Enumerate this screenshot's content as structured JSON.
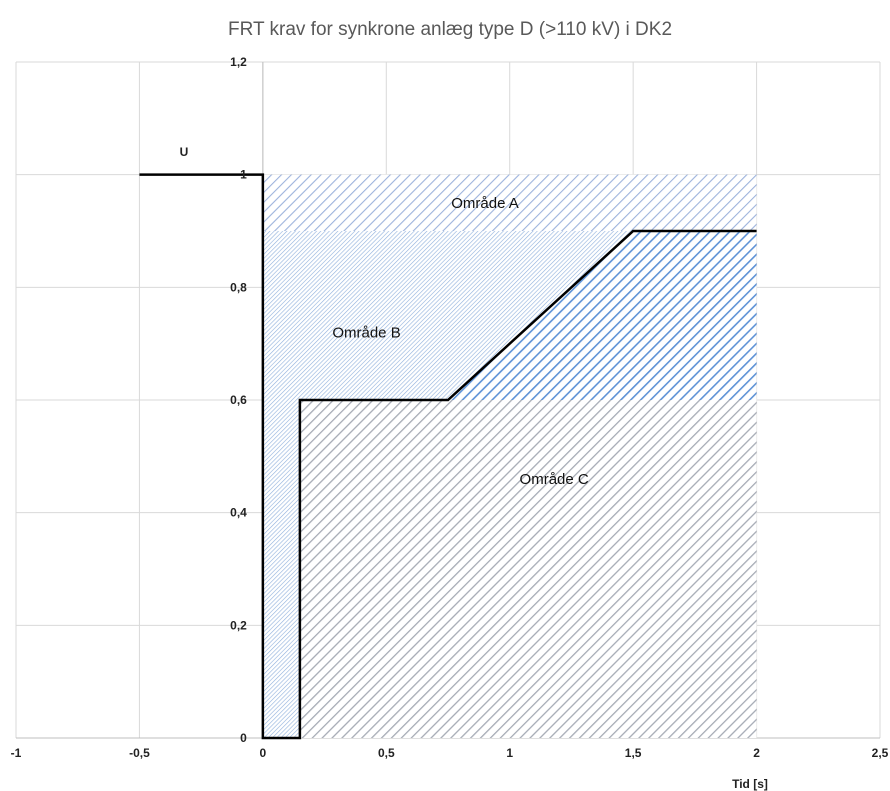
{
  "chart_data": {
    "type": "area",
    "title": "FRT krav for synkrone anlæg type D (>110 kV) i DK2",
    "xlabel": "Tid [s]",
    "ylabel": "U",
    "xlim": [
      -1,
      2.5
    ],
    "ylim": [
      0,
      1.2
    ],
    "x_ticks": [
      -1,
      -0.5,
      0,
      0.5,
      1,
      1.5,
      2,
      2.5
    ],
    "x_tick_labels": [
      "-1",
      "-0,5",
      "0",
      "0,5",
      "1",
      "1,5",
      "2",
      "2,5"
    ],
    "y_ticks": [
      0,
      0.2,
      0.4,
      0.6,
      0.8,
      1,
      1.2
    ],
    "y_tick_labels": [
      "0",
      "0,2",
      "0,4",
      "0,6",
      "0,8",
      "1",
      "1,2"
    ],
    "grid": true,
    "series": [
      {
        "color": "#000000",
        "x": [
          -0.5,
          0,
          0,
          0.15,
          0.15,
          0.75,
          1.5,
          2
        ],
        "y": [
          1,
          1,
          0,
          0,
          0.6,
          0.6,
          0.9,
          0.9
        ]
      }
    ],
    "regions": [
      {
        "label": "Område A",
        "label_at": [
          0.9,
          0.95
        ],
        "color": "#9db3dc",
        "points": [
          [
            0,
            1
          ],
          [
            2,
            1
          ],
          [
            2,
            0.9
          ],
          [
            0,
            0.9
          ]
        ]
      },
      {
        "label": "Område B",
        "label_at": [
          0.42,
          0.72
        ],
        "color": "#8fb0dc",
        "points": [
          [
            0,
            0.9
          ],
          [
            1.5,
            0.9
          ],
          [
            0.75,
            0.6
          ],
          [
            0.15,
            0.6
          ],
          [
            0.15,
            0
          ],
          [
            0,
            0
          ]
        ]
      },
      {
        "label": "Område C",
        "label_at": [
          1.18,
          0.46
        ],
        "color": "#a6abb5",
        "points": [
          [
            0.15,
            0
          ],
          [
            0.15,
            0.6
          ],
          [
            2,
            0.6
          ],
          [
            2,
            0
          ]
        ]
      },
      {
        "label": "",
        "color": "#5e92d6",
        "points": [
          [
            0.75,
            0.6
          ],
          [
            1.5,
            0.9
          ],
          [
            2,
            0.9
          ],
          [
            2,
            0.6
          ]
        ]
      }
    ]
  }
}
